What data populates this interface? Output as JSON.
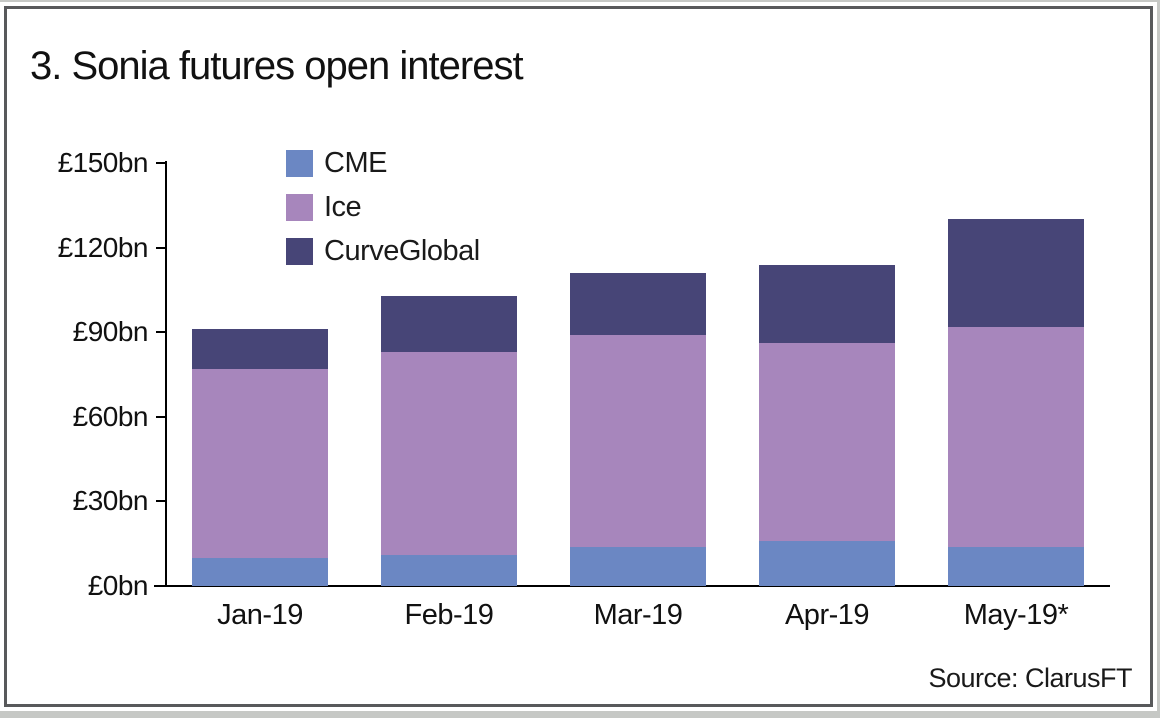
{
  "frame": {
    "title": "3. Sonia futures open interest",
    "source_label": "Source: ClarusFT"
  },
  "chart_data": {
    "type": "bar",
    "stacked": true,
    "title": "3. Sonia futures open interest",
    "categories": [
      "Jan-19",
      "Feb-19",
      "Mar-19",
      "Apr-19",
      "May-19*"
    ],
    "series": [
      {
        "name": "CME",
        "color": "#6b87c3",
        "values": [
          10,
          11,
          14,
          16,
          14
        ]
      },
      {
        "name": "Ice",
        "color": "#a786bc",
        "values": [
          67,
          72,
          75,
          70,
          78
        ]
      },
      {
        "name": "CurveGlobal",
        "color": "#474577",
        "values": [
          14,
          20,
          22,
          28,
          38
        ]
      }
    ],
    "totals": [
      91,
      103,
      111,
      114,
      130
    ],
    "yticks": [
      0,
      30,
      60,
      90,
      120,
      150
    ],
    "ytick_labels": [
      "£0bn",
      "£30bn",
      "£60bn",
      "£90bn",
      "£120bn",
      "£150bn"
    ],
    "ylim": [
      0,
      150
    ],
    "unit": "£bn",
    "grid": false,
    "legend_position": "inside-top-left",
    "legend_entries": [
      "CME",
      "Ice",
      "CurveGlobal"
    ],
    "source": "Source: ClarusFT",
    "axis_color": "#000000",
    "frame_border_color": "#58595b"
  }
}
